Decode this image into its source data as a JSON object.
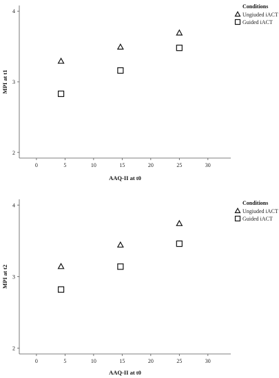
{
  "chart_data": [
    {
      "type": "scatter",
      "xlabel": "AAQ-II at t0",
      "ylabel": "MPI at t1",
      "xlim": [
        -3,
        34
      ],
      "ylim": [
        1.92,
        4.08
      ],
      "xticks": [
        0,
        5,
        10,
        15,
        20,
        25,
        30
      ],
      "yticks": [
        2,
        3,
        4
      ],
      "grid": false,
      "legend": {
        "title": "Conditions",
        "position": "top-right"
      },
      "series": [
        {
          "name": "Ungiuded iACT",
          "marker": "triangle",
          "x": [
            4.3,
            14.7,
            25.0
          ],
          "y": [
            3.29,
            3.49,
            3.69
          ]
        },
        {
          "name": "Guided iACT",
          "marker": "square",
          "x": [
            4.3,
            14.7,
            25.0
          ],
          "y": [
            2.83,
            3.16,
            3.48
          ]
        }
      ]
    },
    {
      "type": "scatter",
      "xlabel": "AAQ-II at t0",
      "ylabel": "MPI at t2",
      "xlim": [
        -3,
        34
      ],
      "ylim": [
        1.92,
        4.08
      ],
      "xticks": [
        0,
        5,
        10,
        15,
        20,
        25,
        30
      ],
      "yticks": [
        2,
        3,
        4
      ],
      "grid": false,
      "legend": {
        "title": "Conditions",
        "position": "top-right"
      },
      "series": [
        {
          "name": "Ungiuded iACT",
          "marker": "triangle",
          "x": [
            4.3,
            14.7,
            25.0
          ],
          "y": [
            3.14,
            3.44,
            3.74
          ]
        },
        {
          "name": "Guided iACT",
          "marker": "square",
          "x": [
            4.3,
            14.7,
            25.0
          ],
          "y": [
            2.82,
            3.14,
            3.46
          ]
        }
      ]
    }
  ]
}
